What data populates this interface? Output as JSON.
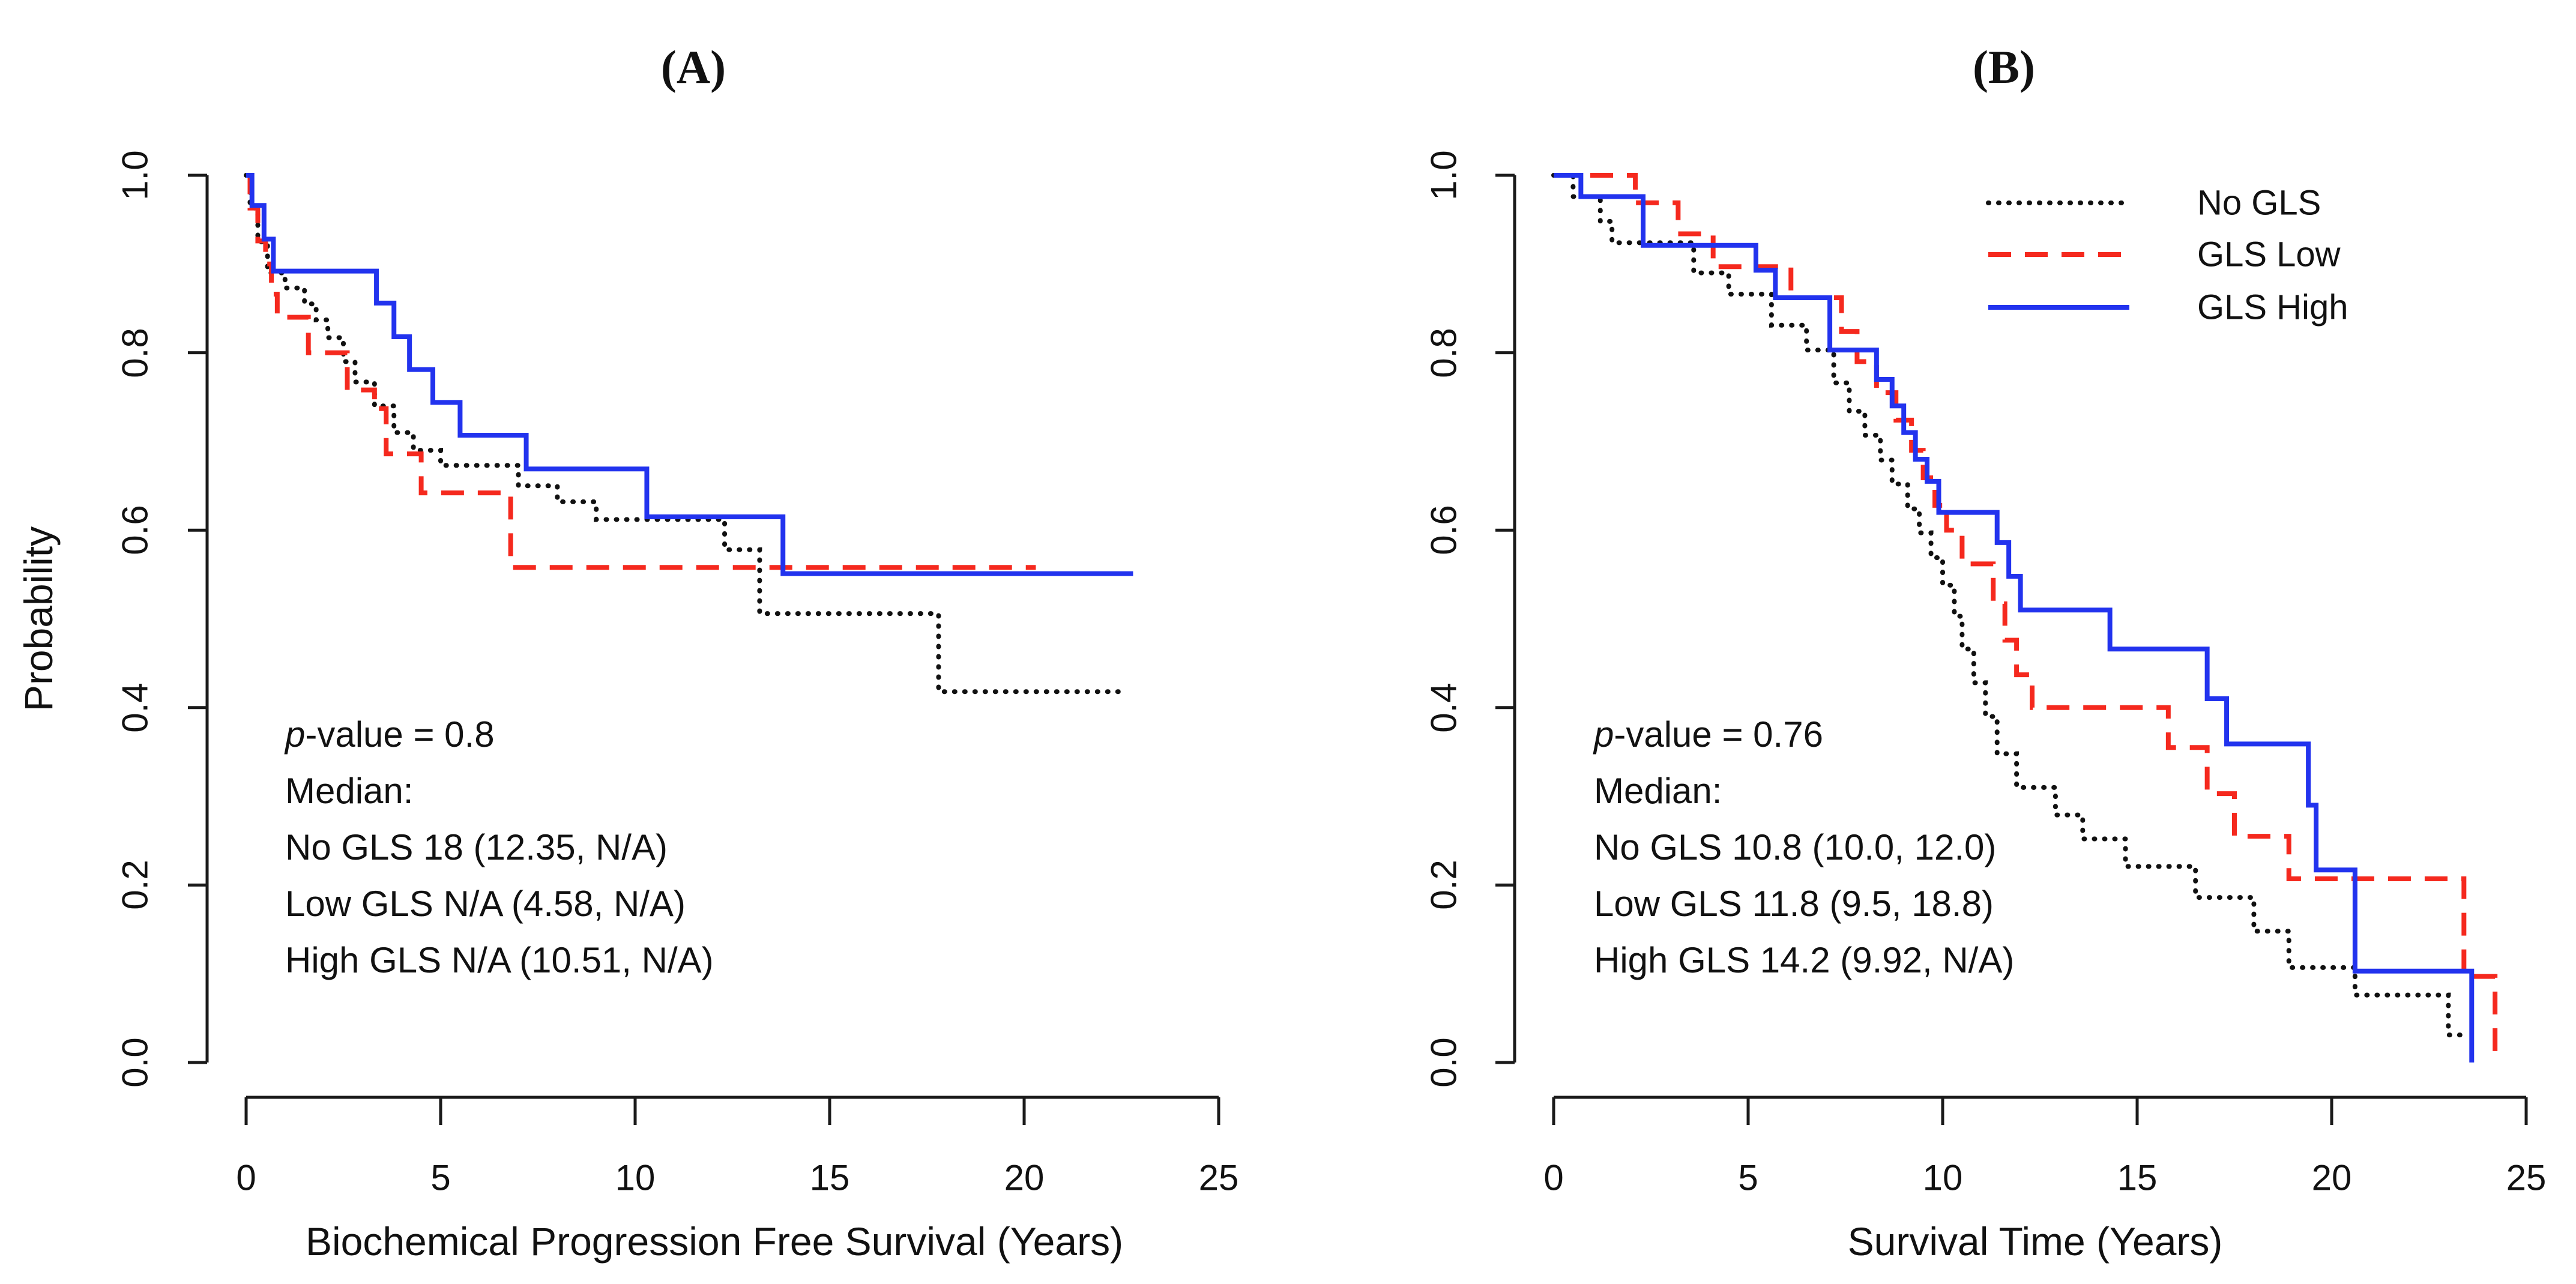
{
  "figure": {
    "background": "#ffffff",
    "axis_color": "#1a1a1a",
    "colors": {
      "no_gls": "#111111",
      "gls_low": "#f5291e",
      "gls_high": "#2233ee"
    }
  },
  "panel_a": {
    "title": "(A)",
    "ylabel": "Probability",
    "xlabel": "Biochemical Progression Free Survival (Years)",
    "x_tick_labels": [
      "0",
      "5",
      "10",
      "15",
      "20",
      "25"
    ],
    "y_tick_labels": [
      "0.0",
      "0.2",
      "0.4",
      "0.6",
      "0.8",
      "1.0"
    ],
    "annotation": {
      "p_italic": "p",
      "p_rest": "-value = 0.8",
      "median_label": "Median:",
      "line_no": "No GLS 18 (12.35, N/A)",
      "line_low": "Low GLS N/A (4.58, N/A)",
      "line_high": "High GLS N/A (10.51, N/A)"
    }
  },
  "panel_b": {
    "title": "(B)",
    "xlabel": "Survival Time (Years)",
    "x_tick_labels": [
      "0",
      "5",
      "10",
      "15",
      "20",
      "25"
    ],
    "y_tick_labels": [
      "0.0",
      "0.2",
      "0.4",
      "0.6",
      "0.8",
      "1.0"
    ],
    "annotation": {
      "p_italic": "p",
      "p_rest": "-value = 0.76",
      "median_label": "Median:",
      "line_no": "No GLS 10.8 (10.0, 12.0)",
      "line_low": "Low GLS 11.8 (9.5, 18.8)",
      "line_high": "High GLS 14.2 (9.92, N/A)"
    },
    "legend_items": [
      "No GLS",
      "GLS Low",
      "GLS High"
    ]
  },
  "chart_data": [
    {
      "id": "A",
      "type": "line",
      "subtype": "kaplan-meier-step",
      "title": "(A)",
      "xlabel": "Biochemical Progression Free Survival (Years)",
      "ylabel": "Probability",
      "xlim": [
        0,
        25
      ],
      "ylim": [
        0,
        1
      ],
      "x_ticks": [
        0,
        5,
        10,
        15,
        20,
        25
      ],
      "y_ticks": [
        0.0,
        0.2,
        0.4,
        0.6,
        0.8,
        1.0
      ],
      "grid": false,
      "legend_position": "none",
      "p_value": 0.8,
      "medians": {
        "No GLS": "18 (12.35, N/A)",
        "Low GLS": "N/A (4.58, N/A)",
        "High GLS": "N/A (10.51, N/A)"
      },
      "series": [
        {
          "name": "No GLS",
          "color": "#111111",
          "style": "dotted",
          "start": [
            0,
            1.0
          ],
          "end_time": 22.5,
          "steps": [
            [
              0.1,
              0.963
            ],
            [
              0.3,
              0.925
            ],
            [
              0.55,
              0.89
            ],
            [
              1.0,
              0.873
            ],
            [
              1.5,
              0.855
            ],
            [
              1.8,
              0.837
            ],
            [
              2.1,
              0.817
            ],
            [
              2.5,
              0.79
            ],
            [
              2.8,
              0.767
            ],
            [
              3.3,
              0.74
            ],
            [
              3.8,
              0.71
            ],
            [
              4.3,
              0.69
            ],
            [
              5.0,
              0.673
            ],
            [
              7.0,
              0.65
            ],
            [
              8.0,
              0.632
            ],
            [
              9.0,
              0.612
            ],
            [
              12.3,
              0.578
            ],
            [
              13.2,
              0.506
            ],
            [
              17.8,
              0.418
            ]
          ]
        },
        {
          "name": "GLS Low",
          "color": "#f5291e",
          "style": "dashed",
          "start": [
            0,
            1.0
          ],
          "end_time": 20.3,
          "steps": [
            [
              0.1,
              0.963
            ],
            [
              0.3,
              0.926
            ],
            [
              0.5,
              0.9
            ],
            [
              0.65,
              0.866
            ],
            [
              0.8,
              0.84
            ],
            [
              1.6,
              0.8
            ],
            [
              2.6,
              0.758
            ],
            [
              3.3,
              0.737
            ],
            [
              3.6,
              0.686
            ],
            [
              4.5,
              0.642
            ],
            [
              6.8,
              0.558
            ]
          ]
        },
        {
          "name": "GLS High",
          "color": "#2233ee",
          "style": "solid",
          "start": [
            0,
            1.0
          ],
          "end_time": 22.8,
          "steps": [
            [
              0.15,
              0.966
            ],
            [
              0.46,
              0.928
            ],
            [
              0.7,
              0.892
            ],
            [
              3.35,
              0.856
            ],
            [
              3.8,
              0.818
            ],
            [
              4.2,
              0.781
            ],
            [
              4.8,
              0.744
            ],
            [
              5.5,
              0.707
            ],
            [
              7.2,
              0.669
            ],
            [
              10.3,
              0.615
            ],
            [
              13.8,
              0.551
            ]
          ]
        }
      ]
    },
    {
      "id": "B",
      "type": "line",
      "subtype": "kaplan-meier-step",
      "title": "(B)",
      "xlabel": "Survival Time (Years)",
      "ylabel": "",
      "xlim": [
        0,
        25
      ],
      "ylim": [
        0,
        1
      ],
      "x_ticks": [
        0,
        5,
        10,
        15,
        20,
        25
      ],
      "y_ticks": [
        0.0,
        0.2,
        0.4,
        0.6,
        0.8,
        1.0
      ],
      "grid": false,
      "legend_position": "top-right",
      "p_value": 0.76,
      "medians": {
        "No GLS": "10.8 (10.0, 12.0)",
        "Low GLS": "11.8 (9.5, 18.8)",
        "High GLS": "14.2 (9.92, N/A)"
      },
      "series": [
        {
          "name": "No GLS",
          "color": "#111111",
          "style": "dotted",
          "start": [
            0,
            1.0
          ],
          "end_time": 23.5,
          "steps": [
            [
              0.5,
              0.976
            ],
            [
              1.2,
              0.948
            ],
            [
              1.5,
              0.924
            ],
            [
              3.6,
              0.89
            ],
            [
              4.5,
              0.866
            ],
            [
              5.6,
              0.831
            ],
            [
              6.5,
              0.803
            ],
            [
              7.2,
              0.766
            ],
            [
              7.6,
              0.734
            ],
            [
              8.0,
              0.707
            ],
            [
              8.4,
              0.679
            ],
            [
              8.7,
              0.652
            ],
            [
              9.1,
              0.624
            ],
            [
              9.4,
              0.597
            ],
            [
              9.7,
              0.569
            ],
            [
              10.0,
              0.538
            ],
            [
              10.3,
              0.503
            ],
            [
              10.5,
              0.466
            ],
            [
              10.8,
              0.428
            ],
            [
              11.1,
              0.39
            ],
            [
              11.4,
              0.348
            ],
            [
              11.9,
              0.31
            ],
            [
              12.9,
              0.279
            ],
            [
              13.6,
              0.252
            ],
            [
              14.7,
              0.221
            ],
            [
              16.5,
              0.186
            ],
            [
              18.0,
              0.148
            ],
            [
              18.9,
              0.107
            ],
            [
              20.6,
              0.076
            ],
            [
              23.0,
              0.031
            ]
          ]
        },
        {
          "name": "GLS Low",
          "color": "#f5291e",
          "style": "dashed",
          "start": [
            0,
            1.0
          ],
          "end_time": 24.2,
          "steps": [
            [
              2.1,
              0.969
            ],
            [
              3.2,
              0.934
            ],
            [
              4.1,
              0.897
            ],
            [
              6.1,
              0.862
            ],
            [
              7.4,
              0.824
            ],
            [
              7.8,
              0.79
            ],
            [
              8.3,
              0.755
            ],
            [
              8.8,
              0.724
            ],
            [
              9.2,
              0.69
            ],
            [
              9.5,
              0.659
            ],
            [
              9.8,
              0.628
            ],
            [
              10.1,
              0.6
            ],
            [
              10.5,
              0.562
            ],
            [
              11.3,
              0.517
            ],
            [
              11.6,
              0.476
            ],
            [
              11.9,
              0.437
            ],
            [
              12.3,
              0.4
            ],
            [
              15.8,
              0.355
            ],
            [
              16.8,
              0.303
            ],
            [
              17.5,
              0.255
            ],
            [
              18.9,
              0.207
            ],
            [
              23.4,
              0.097
            ],
            [
              24.2,
              0.0
            ]
          ]
        },
        {
          "name": "GLS High",
          "color": "#2233ee",
          "style": "solid",
          "start": [
            0,
            1.0
          ],
          "end_time": 23.6,
          "steps": [
            [
              0.7,
              0.976
            ],
            [
              2.3,
              0.921
            ],
            [
              5.2,
              0.893
            ],
            [
              5.7,
              0.862
            ],
            [
              7.1,
              0.803
            ],
            [
              8.3,
              0.77
            ],
            [
              8.7,
              0.74
            ],
            [
              9.0,
              0.71
            ],
            [
              9.3,
              0.68
            ],
            [
              9.6,
              0.655
            ],
            [
              9.9,
              0.62
            ],
            [
              11.4,
              0.586
            ],
            [
              11.7,
              0.548
            ],
            [
              12.0,
              0.51
            ],
            [
              14.3,
              0.466
            ],
            [
              16.8,
              0.41
            ],
            [
              17.3,
              0.359
            ],
            [
              19.4,
              0.29
            ],
            [
              19.6,
              0.217
            ],
            [
              20.6,
              0.103
            ],
            [
              23.6,
              0.0
            ]
          ]
        }
      ]
    }
  ]
}
